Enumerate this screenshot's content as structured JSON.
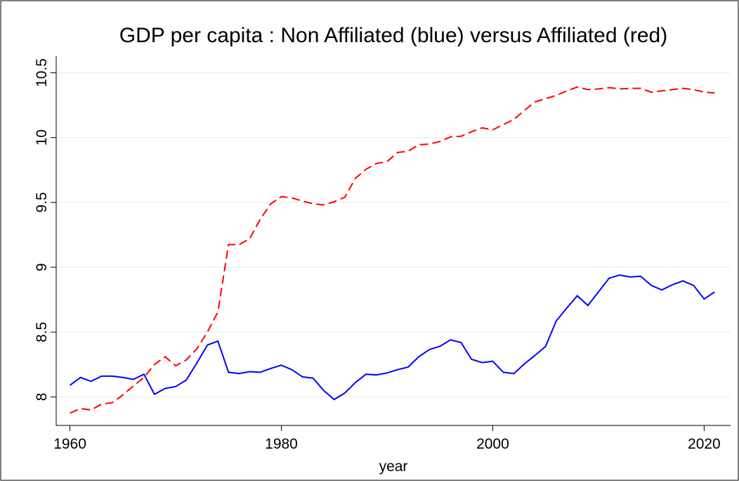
{
  "chart_data": {
    "type": "line",
    "title": "GDP per capita : Non Affiliated (blue) versus Affiliated (red)",
    "x_label": "year",
    "x": [
      1960,
      1961,
      1962,
      1963,
      1964,
      1965,
      1966,
      1967,
      1968,
      1969,
      1970,
      1971,
      1972,
      1973,
      1974,
      1975,
      1976,
      1977,
      1978,
      1979,
      1980,
      1981,
      1982,
      1983,
      1984,
      1985,
      1986,
      1987,
      1988,
      1989,
      1990,
      1991,
      1992,
      1993,
      1994,
      1995,
      1996,
      1997,
      1998,
      1999,
      2000,
      2001,
      2002,
      2003,
      2004,
      2005,
      2006,
      2007,
      2008,
      2009,
      2010,
      2011,
      2012,
      2013,
      2014,
      2015,
      2016,
      2017,
      2018,
      2019,
      2020,
      2021
    ],
    "series": [
      {
        "color": "#0000ff",
        "dash": "solid",
        "values": [
          8.09,
          8.15,
          8.12,
          8.16,
          8.16,
          8.15,
          8.135,
          8.175,
          8.02,
          8.065,
          8.08,
          8.13,
          8.26,
          8.4,
          8.43,
          8.19,
          8.18,
          8.195,
          8.19,
          8.22,
          8.245,
          8.21,
          8.155,
          8.145,
          8.05,
          7.98,
          8.03,
          8.11,
          8.175,
          8.17,
          8.185,
          8.21,
          8.23,
          8.31,
          8.365,
          8.39,
          8.44,
          8.42,
          8.29,
          8.265,
          8.275,
          8.19,
          8.18,
          8.255,
          8.32,
          8.39,
          8.585,
          8.685,
          8.78,
          8.705,
          8.81,
          8.915,
          8.94,
          8.925,
          8.93,
          8.86,
          8.825,
          8.865,
          8.895,
          8.86,
          8.755,
          8.81
        ]
      },
      {
        "color": "#ff0000",
        "dash": "dashed",
        "values": [
          7.875,
          7.91,
          7.9,
          7.945,
          7.955,
          8.015,
          8.085,
          8.15,
          8.25,
          8.31,
          8.24,
          8.285,
          8.37,
          8.5,
          8.655,
          9.175,
          9.175,
          9.22,
          9.37,
          9.49,
          9.545,
          9.535,
          9.51,
          9.49,
          9.48,
          9.505,
          9.54,
          9.685,
          9.755,
          9.8,
          9.815,
          9.885,
          9.895,
          9.945,
          9.95,
          9.97,
          10.005,
          10.01,
          10.045,
          10.075,
          10.06,
          10.1,
          10.14,
          10.21,
          10.275,
          10.3,
          10.325,
          10.36,
          10.39,
          10.37,
          10.375,
          10.385,
          10.375,
          10.38,
          10.38,
          10.35,
          10.36,
          10.37,
          10.38,
          10.37,
          10.35,
          10.345
        ]
      }
    ],
    "xlim": [
      1958.7,
      2022.5
    ],
    "xticks": [
      1960,
      1980,
      2000,
      2020
    ],
    "ylim": [
      7.78,
      10.6
    ],
    "yticks": [
      8,
      8.5,
      9,
      9.5,
      10,
      10.5
    ],
    "grid": true
  }
}
